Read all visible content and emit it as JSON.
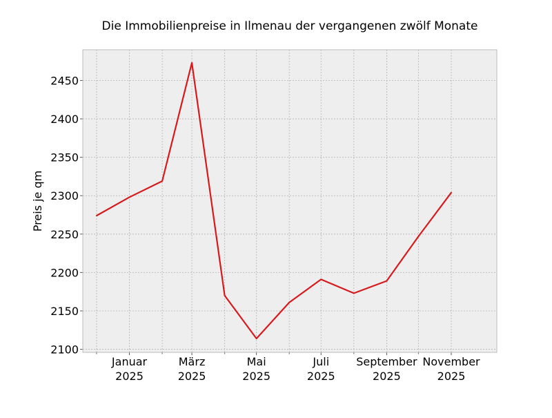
{
  "chart_data": {
    "type": "line",
    "title": "Die Immobilienpreise in Ilmenau der vergangenen zwölf Monate",
    "xlabel": "",
    "ylabel": "Preis je qm",
    "x": [
      "2024-12",
      "2025-01",
      "2025-02",
      "2025-03",
      "2025-04",
      "2025-05",
      "2025-06",
      "2025-07",
      "2025-08",
      "2025-09",
      "2025-10",
      "2025-11"
    ],
    "series": [
      {
        "values": [
          2274,
          2298,
          2319,
          2473,
          2170,
          2114,
          2161,
          2191,
          2173,
          2189,
          2247,
          2304
        ]
      }
    ],
    "x_tick_labels": [
      {
        "at": "2025-01",
        "month": "Januar",
        "year": "2025"
      },
      {
        "at": "2025-03",
        "month": "März",
        "year": "2025"
      },
      {
        "at": "2025-05",
        "month": "Mai",
        "year": "2025"
      },
      {
        "at": "2025-07",
        "month": "Juli",
        "year": "2025"
      },
      {
        "at": "2025-09",
        "month": "September",
        "year": "2025"
      },
      {
        "at": "2025-11",
        "month": "November",
        "year": "2025"
      }
    ],
    "y_ticks": [
      2100,
      2150,
      2200,
      2250,
      2300,
      2350,
      2400,
      2450
    ],
    "ylim": [
      2096,
      2490
    ],
    "xlim": [
      "2024-11-18",
      "2025-12-14"
    ],
    "grid": true,
    "colors": {
      "line": "#d7191c",
      "plot_background": "#eeeeee",
      "grid": "#b2b2b2",
      "frame": "#bcbcbc"
    }
  }
}
